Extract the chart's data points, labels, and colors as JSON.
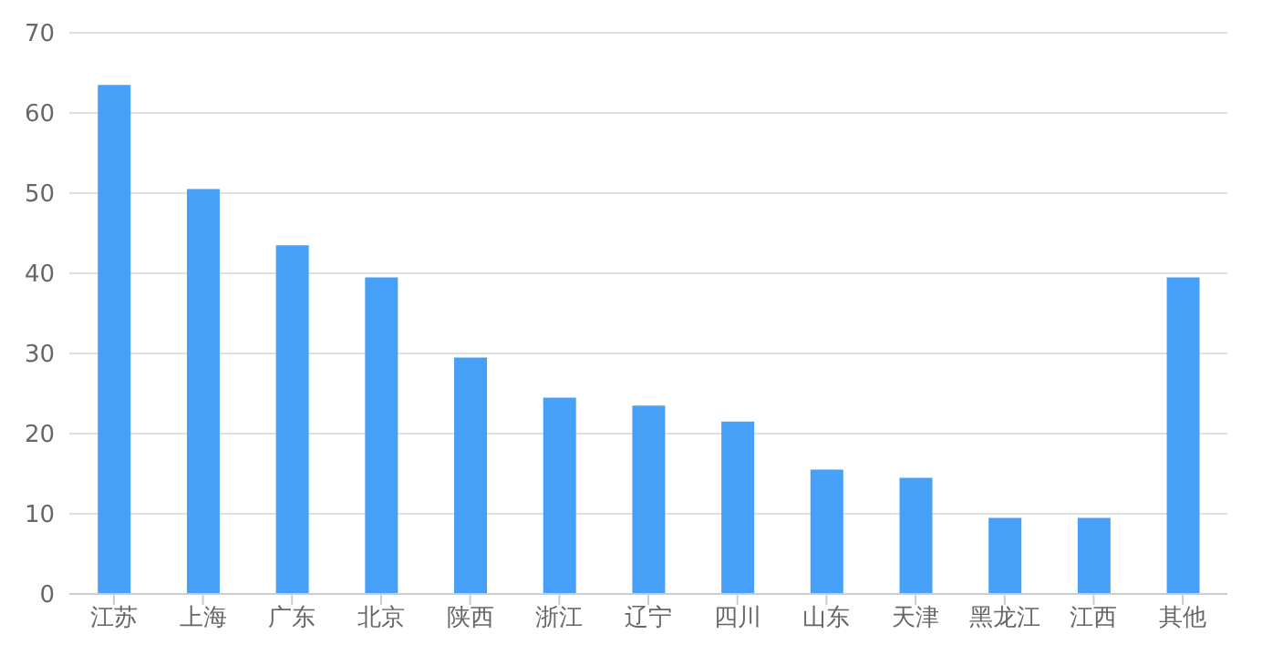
{
  "chart_data": {
    "type": "bar",
    "categories": [
      "江苏",
      "上海",
      "广东",
      "北京",
      "陕西",
      "浙江",
      "辽宁",
      "四川",
      "山东",
      "天津",
      "黑龙江",
      "江西",
      "其他"
    ],
    "values": [
      63.5,
      50.5,
      43.5,
      39.5,
      29.5,
      24.5,
      23.5,
      21.5,
      15.5,
      14.5,
      9.5,
      9.5,
      39.5
    ],
    "color": "#47a0f7",
    "ylim": [
      0,
      70
    ],
    "yticks": [
      0,
      10,
      20,
      30,
      40,
      50,
      60,
      70
    ],
    "grid": "y",
    "legend": false
  }
}
